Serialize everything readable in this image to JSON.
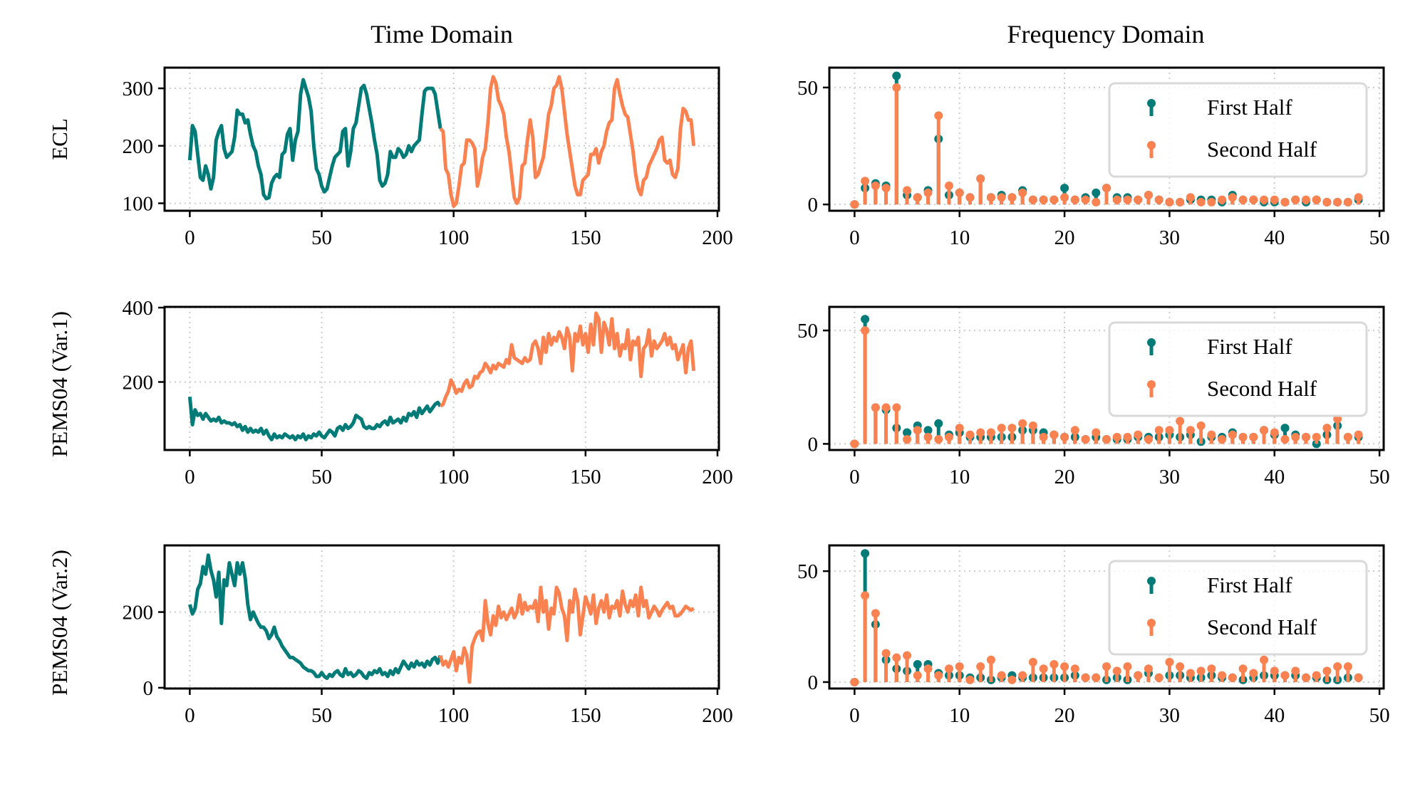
{
  "colors": {
    "first": "#007b78",
    "second": "#fa8150",
    "grid": "#cccccc"
  },
  "column_titles": {
    "time": "Time Domain",
    "freq": "Frequency Domain"
  },
  "legend": {
    "first": "First Half",
    "second": "Second Half"
  },
  "chart_data": [
    {
      "type": "line",
      "row_label": "ECL",
      "xlim": [
        -9.55,
        200.55
      ],
      "ylim": [
        87,
        336
      ],
      "xticks": [
        0,
        50,
        100,
        150,
        200
      ],
      "yticks": [
        100,
        200,
        300
      ],
      "series": [
        {
          "name": "First Half",
          "x_start": 0,
          "values": [
            175,
            235,
            225,
            185,
            145,
            140,
            165,
            150,
            125,
            145,
            210,
            225,
            235,
            195,
            180,
            185,
            190,
            215,
            262,
            255,
            255,
            240,
            245,
            220,
            200,
            190,
            165,
            150,
            115,
            108,
            110,
            135,
            145,
            150,
            145,
            185,
            190,
            220,
            230,
            175,
            210,
            225,
            290,
            315,
            300,
            285,
            260,
            200,
            160,
            150,
            130,
            120,
            125,
            145,
            165,
            180,
            185,
            190,
            225,
            230,
            165,
            190,
            230,
            240,
            270,
            300,
            305,
            290,
            265,
            240,
            210,
            185,
            140,
            130,
            135,
            150,
            190,
            180,
            180,
            195,
            190,
            180,
            185,
            200,
            190,
            200,
            205,
            210,
            255,
            295,
            300,
            300,
            300,
            290,
            260,
            230
          ]
        },
        {
          "name": "Second Half",
          "x_start": 96,
          "values": [
            225,
            160,
            150,
            115,
            95,
            100,
            130,
            165,
            170,
            210,
            210,
            205,
            195,
            130,
            150,
            180,
            195,
            240,
            300,
            320,
            310,
            280,
            270,
            255,
            215,
            190,
            150,
            110,
            100,
            110,
            165,
            170,
            210,
            245,
            215,
            145,
            150,
            165,
            180,
            215,
            255,
            270,
            300,
            305,
            320,
            300,
            260,
            220,
            190,
            160,
            130,
            115,
            115,
            140,
            145,
            150,
            185,
            185,
            195,
            170,
            190,
            200,
            225,
            240,
            245,
            300,
            315,
            290,
            270,
            255,
            250,
            220,
            190,
            150,
            125,
            115,
            140,
            145,
            165,
            175,
            185,
            195,
            210,
            215,
            175,
            170,
            175,
            150,
            145,
            160,
            230,
            265,
            260,
            245,
            245,
            200
          ]
        }
      ]
    },
    {
      "type": "stem",
      "xlim": [
        -2.4,
        50.4
      ],
      "ylim": [
        -2.7,
        58.5
      ],
      "xticks": [
        0,
        10,
        20,
        30,
        40,
        50
      ],
      "yticks": [
        0,
        50
      ],
      "legend_position": "upper-right",
      "series": [
        {
          "name": "First Half",
          "values": [
            0,
            7,
            9,
            8,
            55,
            4,
            3,
            6,
            28,
            4,
            5,
            3,
            11,
            3,
            4,
            3,
            6,
            2,
            2,
            2,
            7,
            2,
            3,
            5,
            7,
            3,
            3,
            2,
            4,
            2,
            1,
            1,
            2,
            2,
            2,
            1,
            4,
            2,
            2,
            1,
            1,
            1,
            2,
            1,
            2,
            1,
            1,
            1,
            2
          ]
        },
        {
          "name": "Second Half",
          "values": [
            0,
            10,
            8,
            7,
            50,
            6,
            3,
            5,
            38,
            8,
            5,
            3,
            11,
            3,
            3,
            3,
            5,
            2,
            2,
            2,
            3,
            2,
            2,
            1,
            7,
            2,
            2,
            2,
            4,
            2,
            1,
            1,
            3,
            1,
            1,
            2,
            3,
            2,
            2,
            2,
            2,
            1,
            2,
            2,
            2,
            1,
            1,
            1,
            3
          ]
        }
      ]
    },
    {
      "type": "line",
      "row_label": "PEMS04 (Var.1)",
      "xlim": [
        -9.55,
        200.55
      ],
      "ylim": [
        17,
        402
      ],
      "xticks": [
        0,
        50,
        100,
        150,
        200
      ],
      "yticks": [
        200,
        400
      ],
      "series": [
        {
          "name": "First Half",
          "x_start": 0,
          "values": [
            160,
            85,
            125,
            110,
            115,
            100,
            115,
            105,
            95,
            100,
            95,
            105,
            90,
            95,
            90,
            90,
            85,
            90,
            80,
            85,
            70,
            80,
            65,
            75,
            65,
            70,
            65,
            75,
            60,
            70,
            55,
            45,
            60,
            50,
            55,
            50,
            60,
            55,
            50,
            55,
            45,
            55,
            50,
            60,
            45,
            55,
            50,
            60,
            55,
            65,
            55,
            50,
            60,
            70,
            65,
            55,
            75,
            80,
            70,
            85,
            75,
            80,
            90,
            110,
            105,
            100,
            80,
            75,
            80,
            75,
            75,
            85,
            80,
            90,
            95,
            85,
            105,
            90,
            95,
            100,
            90,
            105,
            95,
            115,
            110,
            120,
            105,
            130,
            115,
            125,
            135,
            120,
            130,
            140,
            145,
            135
          ]
        },
        {
          "name": "Second Half",
          "x_start": 96,
          "values": [
            140,
            160,
            175,
            205,
            190,
            170,
            180,
            175,
            195,
            205,
            185,
            190,
            215,
            210,
            225,
            230,
            250,
            240,
            225,
            245,
            235,
            250,
            245,
            240,
            260,
            250,
            300,
            265,
            260,
            255,
            250,
            265,
            255,
            260,
            300,
            310,
            290,
            250,
            320,
            280,
            330,
            300,
            320,
            310,
            335,
            320,
            290,
            345,
            320,
            230,
            330,
            310,
            350,
            300,
            330,
            280,
            355,
            300,
            385,
            370,
            280,
            360,
            340,
            300,
            370,
            290,
            330,
            270,
            300,
            290,
            340,
            260,
            310,
            300,
            320,
            215,
            290,
            300,
            340,
            270,
            310,
            290,
            300,
            310,
            330,
            300,
            320,
            290,
            300,
            260,
            280,
            300,
            225,
            290,
            310,
            230
          ]
        }
      ]
    },
    {
      "type": "stem",
      "xlim": [
        -2.4,
        50.4
      ],
      "ylim": [
        -2.7,
        60.4
      ],
      "xticks": [
        0,
        10,
        20,
        30,
        40,
        50
      ],
      "yticks": [
        0,
        50
      ],
      "legend_position": "upper-right",
      "series": [
        {
          "name": "First Half",
          "values": [
            0,
            55,
            16,
            15,
            7,
            5,
            8,
            6,
            9,
            4,
            5,
            3,
            3,
            3,
            3,
            3,
            6,
            6,
            5,
            4,
            3,
            3,
            2,
            3,
            2,
            2,
            2,
            3,
            3,
            3,
            4,
            3,
            4,
            1,
            3,
            3,
            5,
            3,
            3,
            6,
            4,
            7,
            4,
            3,
            0,
            4,
            8,
            3,
            3
          ]
        },
        {
          "name": "Second Half",
          "values": [
            0,
            50,
            16,
            16,
            16,
            2,
            6,
            3,
            2,
            3,
            7,
            4,
            5,
            5,
            7,
            7,
            9,
            8,
            3,
            4,
            3,
            6,
            2,
            5,
            2,
            3,
            3,
            4,
            2,
            6,
            6,
            10,
            6,
            8,
            4,
            2,
            4,
            3,
            3,
            6,
            5,
            2,
            3,
            3,
            3,
            7,
            11,
            3,
            4
          ]
        }
      ]
    },
    {
      "type": "line",
      "row_label": "PEMS04 (Var.2)",
      "xlim": [
        -9.55,
        200.55
      ],
      "ylim": [
        -2,
        376
      ],
      "xticks": [
        0,
        50,
        100,
        150,
        200
      ],
      "yticks": [
        0,
        200
      ],
      "series": [
        {
          "name": "First Half",
          "x_start": 0,
          "values": [
            220,
            195,
            210,
            260,
            275,
            320,
            300,
            350,
            310,
            285,
            240,
            305,
            170,
            285,
            270,
            330,
            300,
            270,
            330,
            300,
            330,
            290,
            220,
            180,
            200,
            185,
            170,
            160,
            160,
            150,
            130,
            140,
            160,
            135,
            125,
            110,
            100,
            90,
            80,
            80,
            75,
            70,
            65,
            55,
            50,
            45,
            45,
            40,
            30,
            30,
            40,
            30,
            25,
            35,
            30,
            40,
            45,
            35,
            30,
            50,
            35,
            40,
            30,
            35,
            45,
            40,
            30,
            25,
            40,
            35,
            45,
            40,
            50,
            35,
            40,
            30,
            45,
            35,
            50,
            40,
            55,
            70,
            60,
            50,
            65,
            55,
            70,
            60,
            65,
            55,
            70,
            60,
            75,
            80,
            65,
            85
          ]
        },
        {
          "name": "Second Half",
          "x_start": 96,
          "values": [
            60,
            70,
            55,
            75,
            95,
            45,
            80,
            65,
            105,
            85,
            15,
            110,
            130,
            145,
            150,
            125,
            230,
            170,
            140,
            190,
            165,
            215,
            185,
            200,
            180,
            195,
            210,
            185,
            200,
            245,
            195,
            225,
            205,
            215,
            210,
            230,
            175,
            265,
            200,
            230,
            155,
            210,
            195,
            265,
            250,
            210,
            190,
            125,
            230,
            200,
            260,
            230,
            140,
            190,
            240,
            220,
            195,
            245,
            170,
            210,
            230,
            200,
            245,
            185,
            215,
            210,
            230,
            190,
            255,
            220,
            200,
            230,
            215,
            245,
            190,
            265,
            215,
            230,
            185,
            200,
            215,
            205,
            190,
            205,
            215,
            225,
            210,
            215,
            190,
            190,
            195,
            205,
            215,
            210,
            205,
            210
          ]
        }
      ]
    },
    {
      "type": "stem",
      "xlim": [
        -2.4,
        50.4
      ],
      "ylim": [
        -2.9,
        61.6
      ],
      "xticks": [
        0,
        10,
        20,
        30,
        40,
        50
      ],
      "yticks": [
        0,
        50
      ],
      "legend_position": "upper-right",
      "series": [
        {
          "name": "First Half",
          "values": [
            0,
            58,
            26,
            10,
            6,
            5,
            8,
            8,
            4,
            3,
            3,
            2,
            2,
            1,
            2,
            3,
            2,
            2,
            2,
            2,
            2,
            3,
            2,
            2,
            1,
            2,
            1,
            3,
            4,
            2,
            3,
            3,
            2,
            2,
            3,
            2,
            2,
            1,
            2,
            3,
            3,
            3,
            3,
            2,
            2,
            1,
            1,
            2,
            2
          ]
        },
        {
          "name": "Second Half",
          "values": [
            0,
            39,
            31,
            13,
            11,
            12,
            3,
            6,
            3,
            6,
            7,
            1,
            7,
            10,
            3,
            1,
            3,
            9,
            6,
            8,
            7,
            6,
            2,
            2,
            7,
            5,
            7,
            3,
            6,
            2,
            9,
            7,
            4,
            5,
            6,
            3,
            2,
            6,
            4,
            10,
            5,
            3,
            5,
            2,
            3,
            5,
            7,
            7,
            2
          ]
        }
      ]
    }
  ]
}
